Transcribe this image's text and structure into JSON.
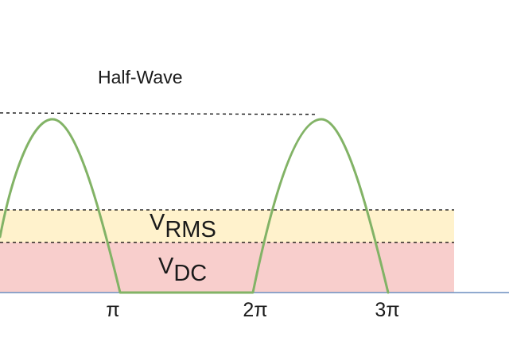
{
  "title": "Half-Wave",
  "levels": {
    "rms": {
      "symbol": "V",
      "subscript": "RMS"
    },
    "dc": {
      "symbol": "V",
      "subscript": "DC"
    }
  },
  "x_ticks": [
    "π",
    "2π",
    "3π"
  ],
  "colors": {
    "waveform": "#82b366",
    "rms_band": "#fff2cc",
    "dc_band": "#f8cecc",
    "baseline": "#6c8ebf",
    "dashed_lines": "#000000",
    "text": "#1a1a1a"
  }
}
